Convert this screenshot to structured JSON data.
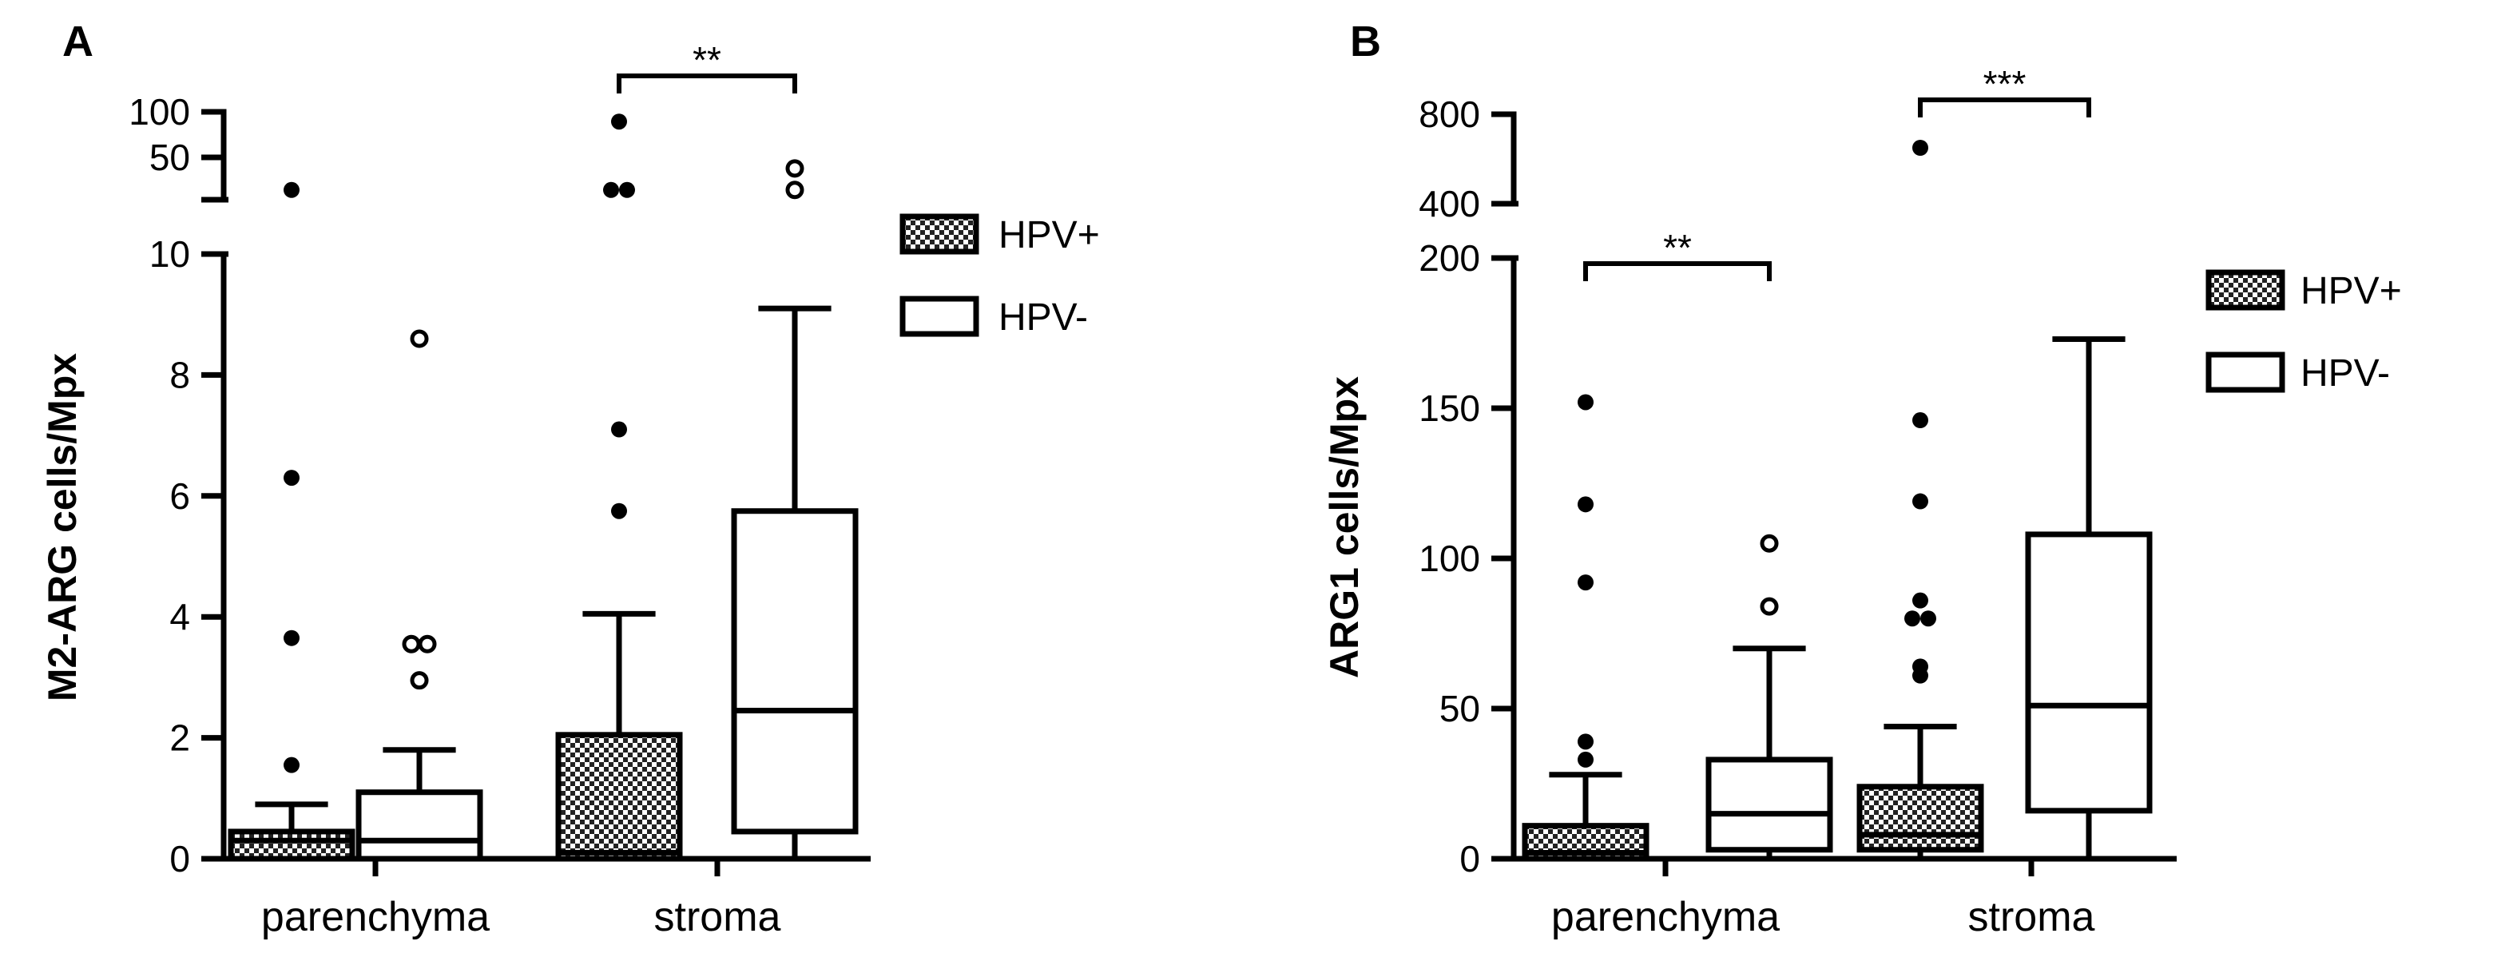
{
  "chart_data": [
    {
      "panel": "A",
      "type": "box",
      "ylabel": "M2-ARG cells/Mpx",
      "categories": [
        "parenchyma",
        "stroma"
      ],
      "legend": [
        "HPV+",
        "HPV-"
      ],
      "legend_placement": "right",
      "grid": false,
      "y_axis_segments": [
        {
          "range": [
            0,
            10
          ],
          "ticks": [
            "0",
            "2",
            "4",
            "6",
            "8",
            "10"
          ]
        },
        {
          "range": [
            10,
            100
          ],
          "ticks": [
            "50",
            "100"
          ]
        }
      ],
      "series": [
        {
          "name": "HPV+",
          "fill": "checkered",
          "boxes": [
            {
              "category": "parenchyma",
              "whisker_low": 0,
              "q1": 0,
              "median": 0.3,
              "q3": 0.45,
              "whisker_high": 0.9,
              "outliers": [
                1.55,
                3.65,
                6.3,
                20
              ]
            },
            {
              "category": "stroma",
              "whisker_low": 0,
              "q1": 0,
              "median": 0.1,
              "q3": 2.05,
              "whisker_high": 4.05,
              "outliers": [
                5.75,
                7.1,
                20,
                20,
                90
              ]
            }
          ]
        },
        {
          "name": "HPV-",
          "fill": "white",
          "boxes": [
            {
              "category": "parenchyma",
              "whisker_low": 0,
              "q1": 0,
              "median": 0.3,
              "q3": 1.1,
              "whisker_high": 1.8,
              "outliers": [
                2.95,
                3.55,
                3.55,
                8.6
              ]
            },
            {
              "category": "stroma",
              "whisker_low": 0,
              "q1": 0.45,
              "median": 2.45,
              "q3": 5.75,
              "whisker_high": 9.1,
              "outliers": [
                20,
                42
              ]
            }
          ]
        }
      ],
      "significance": [
        {
          "category": "stroma",
          "label": "**"
        }
      ]
    },
    {
      "panel": "B",
      "type": "box",
      "ylabel": "ARG1 cells/Mpx",
      "categories": [
        "parenchyma",
        "stroma"
      ],
      "legend": [
        "HPV+",
        "HPV-"
      ],
      "legend_placement": "right",
      "grid": false,
      "y_axis_segments": [
        {
          "range": [
            0,
            200
          ],
          "ticks": [
            "0",
            "50",
            "100",
            "150",
            "200"
          ]
        },
        {
          "range": [
            400,
            800
          ],
          "ticks": [
            "400",
            "800"
          ]
        }
      ],
      "series": [
        {
          "name": "HPV+",
          "fill": "checkered",
          "boxes": [
            {
              "category": "parenchyma",
              "whisker_low": 0,
              "q1": 0,
              "median": 2,
              "q3": 11,
              "whisker_high": 28,
              "outliers": [
                33,
                39,
                92,
                118,
                152
              ]
            },
            {
              "category": "stroma",
              "whisker_low": 0,
              "q1": 3,
              "median": 8,
              "q3": 24,
              "whisker_high": 44,
              "outliers": [
                61,
                64,
                80,
                80,
                86,
                119,
                146,
                650
              ]
            }
          ]
        },
        {
          "name": "HPV-",
          "fill": "white",
          "boxes": [
            {
              "category": "parenchyma",
              "whisker_low": 0,
              "q1": 3,
              "median": 15,
              "q3": 33,
              "whisker_high": 70,
              "outliers": [
                84,
                105
              ]
            },
            {
              "category": "stroma",
              "whisker_low": 0,
              "q1": 16,
              "median": 51,
              "q3": 108,
              "whisker_high": 173,
              "outliers": []
            }
          ]
        }
      ],
      "significance": [
        {
          "category": "parenchyma",
          "label": "**"
        },
        {
          "category": "stroma",
          "label": "***"
        }
      ]
    }
  ]
}
